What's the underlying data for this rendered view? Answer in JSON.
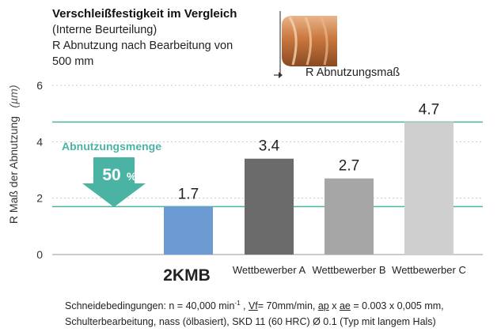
{
  "header": {
    "title": "Verschleißfestigkeit im Vergleich",
    "subtitle": "(Interne Beurteilung)",
    "line3": "R Abnutzung nach Bearbeitung von",
    "line4": "500 mm"
  },
  "tool_image": {
    "icon": "end-mill-tool-icon",
    "measure_label": "R Abnutzungsmaß"
  },
  "chart_data": {
    "type": "bar",
    "ylabel": "R Maß der Abnutzung",
    "yunit": "(µm)",
    "ylim": [
      0,
      6
    ],
    "yticks": [
      "0",
      "2",
      "4",
      "6"
    ],
    "grid": true,
    "categories": [
      "2KMB",
      "Wettbewerber A",
      "Wettbewerber B",
      "Wettbewerber C"
    ],
    "values": [
      1.7,
      3.4,
      2.7,
      4.7
    ],
    "value_labels": [
      "1.7",
      "3.4",
      "2.7",
      "4.7"
    ],
    "bar_colors": [
      "#6b9bd2",
      "#6b6b6b",
      "#a6a6a6",
      "#cfcfcf"
    ],
    "reference_lines": [
      1.7,
      4.7
    ],
    "reference_color": "#4bb3a4",
    "annotation": {
      "label": "Abnutzungsmenge",
      "arrow_text": "50",
      "arrow_unit": "%"
    }
  },
  "footer": {
    "line1_pre": "Schneidebedingungen: n = 40,000 min",
    "line1_sup": "-1",
    "line1_sep": " , ",
    "vf": "Vf",
    "line1_mid": "= 70mm/min, ",
    "ap": "ap",
    "x": " x ",
    "ae": "ae",
    "line1_end": " = 0.003 x 0,005 mm,",
    "line2": "Schulterbearbeitung, nass (ölbasiert), SKD 11 (60 HRC) Ø 0.1 (Typ mit langem Hals)"
  }
}
